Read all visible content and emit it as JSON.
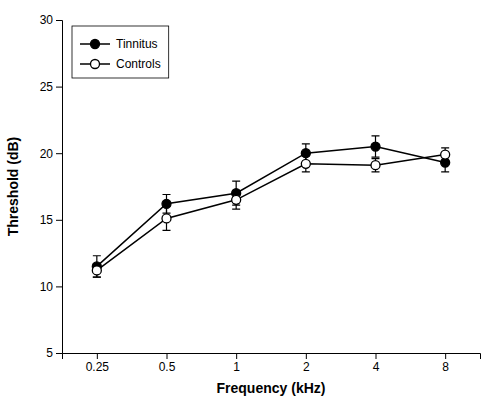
{
  "chart_data": {
    "type": "line",
    "categories": [
      "0.25",
      "0.5",
      "1",
      "2",
      "4",
      "8"
    ],
    "x_label": "Frequency (kHz)",
    "y_label": "Threshold (dB)",
    "ylim": [
      5,
      30
    ],
    "yticks": [
      5,
      10,
      15,
      20,
      25,
      30
    ],
    "grid": false,
    "legend": "upper-left",
    "series": [
      {
        "name": "Tinnitus",
        "color": "#000000",
        "marker": "circle",
        "values": [
          11.5,
          16.2,
          17.0,
          20.0,
          20.5,
          19.3
        ],
        "errors": [
          0.8,
          0.7,
          0.9,
          0.7,
          0.8,
          0.7
        ]
      },
      {
        "name": "Controls",
        "color": "#000000",
        "marker": "circle-open",
        "values": [
          11.2,
          15.1,
          16.5,
          19.2,
          19.1,
          19.9
        ],
        "errors": [
          0.5,
          0.9,
          0.7,
          0.6,
          0.5,
          0.5
        ]
      }
    ]
  }
}
